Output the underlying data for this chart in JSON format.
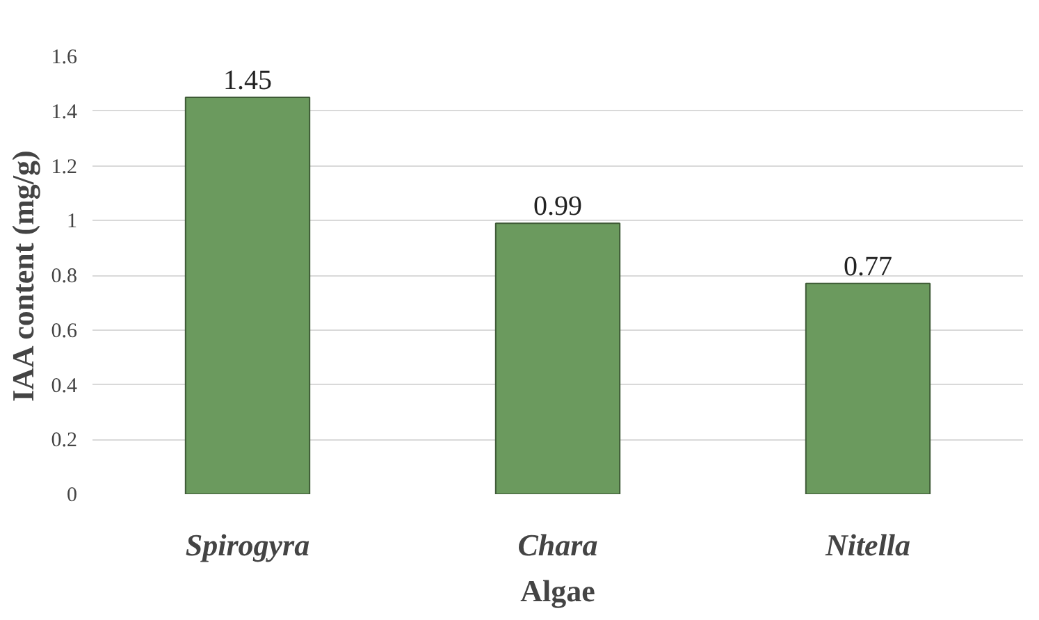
{
  "chart_data": {
    "type": "bar",
    "xlabel": "Algae",
    "ylabel": "IAA content (mg/g)",
    "categories": [
      "Spirogyra",
      "Chara",
      "Nitella"
    ],
    "values": [
      1.45,
      0.99,
      0.77
    ],
    "color": "#6b9a5e",
    "ylim": [
      0,
      1.6
    ],
    "yticks": [
      0,
      0.2,
      0.4,
      0.6,
      0.8,
      1,
      1.2,
      1.4,
      1.6
    ],
    "grid": "y",
    "data_labels": true
  }
}
